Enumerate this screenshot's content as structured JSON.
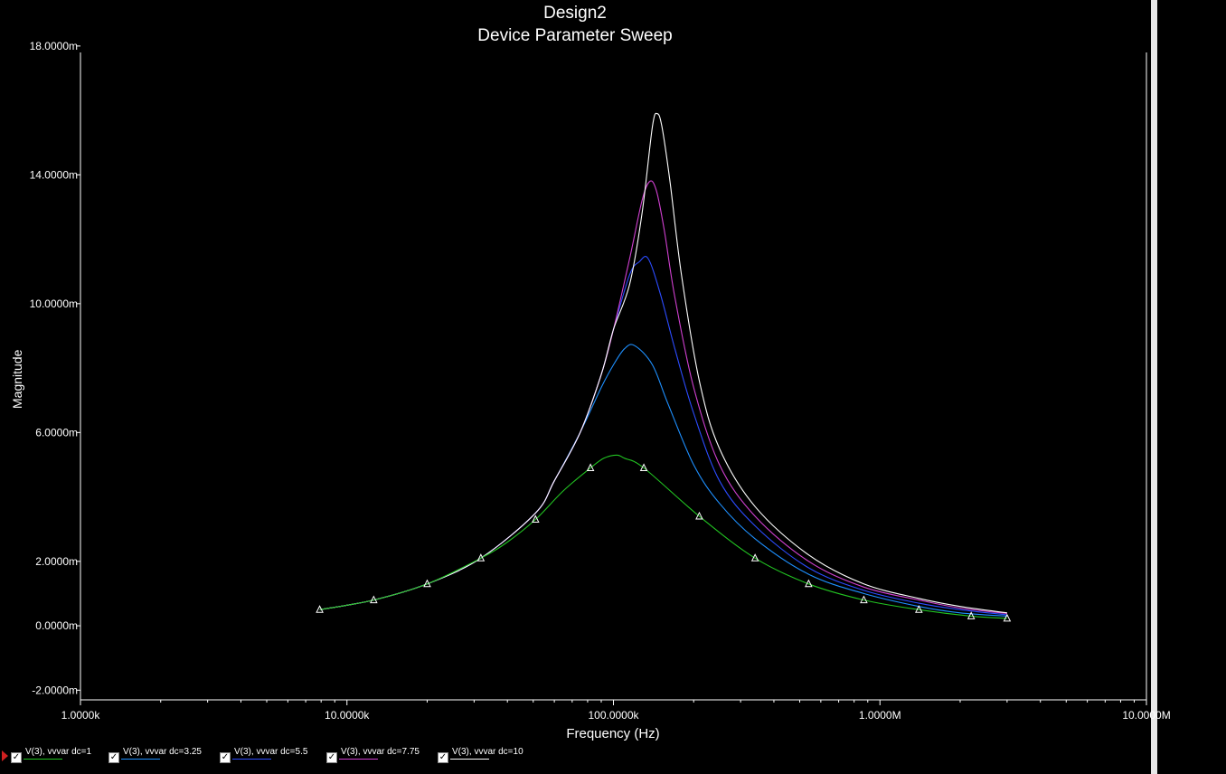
{
  "title": "Design2",
  "subtitle": "Device Parameter Sweep",
  "chart_data": {
    "type": "line",
    "xlabel": "Frequency (Hz)",
    "ylabel": "Magnitude",
    "xscale": "log",
    "xlim": [
      1000,
      10000000
    ],
    "ylim": [
      -0.0023,
      0.0178
    ],
    "x_ticks": [
      1000,
      10000,
      100000,
      1000000,
      10000000
    ],
    "x_tick_labels": [
      "1.0000k",
      "10.0000k",
      "100.0000k",
      "1.0000M",
      "10.0000M"
    ],
    "y_ticks": [
      -0.002,
      0,
      0.002,
      0.006,
      0.01,
      0.014,
      0.018
    ],
    "y_tick_labels": [
      "-2.0000m",
      "0.0000m",
      "2.0000m",
      "6.0000m",
      "10.0000m",
      "14.0000m",
      "18.0000m"
    ],
    "grid": false,
    "legend_position": "bottom",
    "series": [
      {
        "name": "V(3), vvvar dc=1",
        "color": "#22c422",
        "x": [
          3000000,
          2200000,
          1400000,
          870000,
          540000,
          340000,
          210000,
          130000,
          110000,
          103000,
          92000,
          82000,
          65000,
          51000,
          40000,
          31800,
          20000,
          12600,
          7900
        ],
        "y": [
          0.00023,
          0.0003,
          0.0005,
          0.0008,
          0.0013,
          0.0021,
          0.0034,
          0.0049,
          0.0052,
          0.0053,
          0.0052,
          0.0049,
          0.0042,
          0.0033,
          0.0026,
          0.0021,
          0.0013,
          0.0008,
          0.0005
        ]
      },
      {
        "name": "V(3), vvvar dc=3.25",
        "color": "#1e90ff",
        "x": [
          3000000,
          2000000,
          1400000,
          870000,
          540000,
          340000,
          250000,
          200000,
          160000,
          140000,
          120000,
          110000,
          100000,
          90000,
          75000,
          60000,
          51000,
          31800,
          20000,
          12600,
          7900
        ],
        "y": [
          0.0003,
          0.0004,
          0.0006,
          0.001,
          0.0016,
          0.0027,
          0.0038,
          0.005,
          0.0069,
          0.0081,
          0.0087,
          0.0086,
          0.0081,
          0.0074,
          0.006,
          0.0045,
          0.0035,
          0.0021,
          0.0013,
          0.0008,
          0.0005
        ]
      },
      {
        "name": "V(3), vvvar dc=5.5",
        "color": "#2c4cff",
        "x": [
          3000000,
          2000000,
          1400000,
          870000,
          540000,
          340000,
          250000,
          200000,
          170000,
          150000,
          135000,
          125000,
          115000,
          100000,
          90000,
          75000,
          60000,
          51000,
          31800,
          20000,
          12600,
          7900
        ],
        "y": [
          0.00034,
          0.0005,
          0.0007,
          0.0011,
          0.0018,
          0.0031,
          0.0045,
          0.0066,
          0.0086,
          0.0103,
          0.0114,
          0.0113,
          0.0109,
          0.0092,
          0.0078,
          0.006,
          0.0045,
          0.0035,
          0.0021,
          0.0013,
          0.0008,
          0.0005
        ]
      },
      {
        "name": "V(3), vvvar dc=7.75",
        "color": "#d040d0",
        "x": [
          3000000,
          2000000,
          1400000,
          870000,
          540000,
          340000,
          250000,
          200000,
          170000,
          155000,
          145000,
          137000,
          128000,
          115000,
          100000,
          90000,
          75000,
          60000,
          51000,
          31800,
          20000,
          12600,
          7900
        ],
        "y": [
          0.00038,
          0.00055,
          0.0008,
          0.0012,
          0.002,
          0.0034,
          0.005,
          0.0074,
          0.0102,
          0.0123,
          0.0135,
          0.0138,
          0.0132,
          0.0114,
          0.0092,
          0.0078,
          0.006,
          0.0045,
          0.0035,
          0.0021,
          0.0013,
          0.0008,
          0.0005
        ]
      },
      {
        "name": "V(3), vvvar dc=10",
        "color": "#ffffff",
        "x": [
          3000000,
          2000000,
          1400000,
          870000,
          540000,
          340000,
          250000,
          210000,
          180000,
          163000,
          152000,
          146000,
          140000,
          128000,
          115000,
          100000,
          90000,
          75000,
          60000,
          51000,
          31800,
          20000,
          12600,
          7900
        ],
        "y": [
          0.0004,
          0.0006,
          0.00085,
          0.0013,
          0.0022,
          0.0037,
          0.0055,
          0.0076,
          0.0109,
          0.0138,
          0.0155,
          0.0159,
          0.0155,
          0.0128,
          0.0106,
          0.0092,
          0.0078,
          0.006,
          0.0045,
          0.0035,
          0.0021,
          0.0013,
          0.0008,
          0.0005
        ]
      }
    ]
  }
}
